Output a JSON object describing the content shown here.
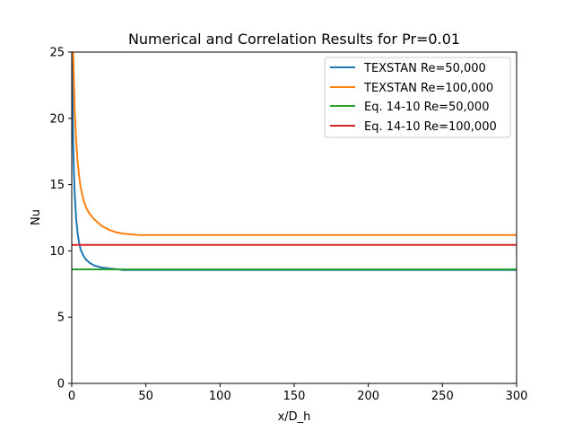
{
  "chart_data": {
    "type": "line",
    "title": "Numerical and Correlation Results for Pr=0.01",
    "xlabel": "x/D_h",
    "ylabel": "Nu",
    "xlim": [
      0,
      300
    ],
    "ylim": [
      0,
      25
    ],
    "xticks": [
      "0",
      "50",
      "100",
      "150",
      "200",
      "250",
      "300"
    ],
    "yticks": [
      "0",
      "5",
      "10",
      "15",
      "20",
      "25"
    ],
    "grid": false,
    "legend_position": "top-right",
    "series": [
      {
        "name": "TEXSTAN Re=50,000",
        "color": "#1f77b4",
        "x": [
          0.3,
          0.6,
          1,
          1.5,
          2,
          3,
          4,
          5,
          6,
          8,
          10,
          12,
          15,
          20,
          25,
          30,
          35,
          40,
          50,
          60,
          80,
          100,
          150,
          200,
          250,
          300
        ],
        "y": [
          25.5,
          21.0,
          18.0,
          15.8,
          14.3,
          12.4,
          11.3,
          10.6,
          10.1,
          9.6,
          9.3,
          9.1,
          8.9,
          8.75,
          8.68,
          8.62,
          8.55,
          8.55,
          8.55,
          8.55,
          8.55,
          8.55,
          8.55,
          8.55,
          8.55,
          8.55
        ]
      },
      {
        "name": "TEXSTAN Re=100,000",
        "color": "#ff7f0e",
        "x": [
          0.8,
          1.2,
          2,
          3,
          4,
          5,
          6,
          8,
          10,
          12,
          15,
          20,
          25,
          30,
          35,
          40,
          45,
          50,
          60,
          80,
          100,
          150,
          200,
          250,
          300
        ],
        "y": [
          25.5,
          24.0,
          20.5,
          18.3,
          16.7,
          15.6,
          14.8,
          13.8,
          13.2,
          12.8,
          12.4,
          11.9,
          11.6,
          11.4,
          11.3,
          11.25,
          11.2,
          11.2,
          11.2,
          11.2,
          11.2,
          11.2,
          11.2,
          11.2,
          11.2
        ]
      },
      {
        "name": "Eq. 14-10 Re=50,000",
        "color": "#2ca02c",
        "x": [
          0,
          300
        ],
        "y": [
          8.6,
          8.6
        ]
      },
      {
        "name": "Eq. 14-10 Re=100,000",
        "color": "#d62728",
        "x": [
          0,
          300
        ],
        "y": [
          10.45,
          10.45
        ]
      }
    ]
  }
}
